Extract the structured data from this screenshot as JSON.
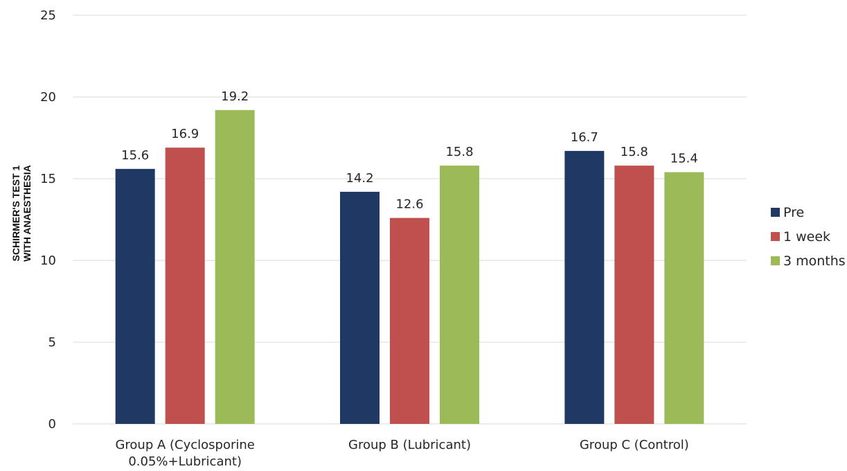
{
  "chart_data": {
    "type": "bar",
    "title": "",
    "xlabel": "",
    "ylabel_lines": [
      "SCHIRMER'S TEST 1",
      "WITH ANAESTHESIA"
    ],
    "categories": [
      [
        "Group A (Cyclosporine",
        "0.05%+Lubricant)"
      ],
      [
        "Group B (Lubricant)"
      ],
      [
        "Group C (Control)"
      ]
    ],
    "series": [
      {
        "name": "Pre",
        "color": "#1f3864",
        "values": [
          15.6,
          14.2,
          16.7
        ],
        "labels": [
          "15.6",
          "14.2",
          "16.7"
        ]
      },
      {
        "name": "1 week",
        "color": "#c0504d",
        "values": [
          16.9,
          12.6,
          15.8
        ],
        "labels": [
          "16.9",
          "12.6",
          "15.8"
        ]
      },
      {
        "name": "3 months",
        "color": "#9bbb59",
        "values": [
          19.2,
          15.8,
          15.4
        ],
        "labels": [
          "19.2",
          "15.8",
          "15.4"
        ]
      }
    ],
    "ylim": [
      0,
      25
    ],
    "yticks": [
      0,
      5,
      10,
      15,
      20,
      25
    ],
    "ytick_labels": [
      "0",
      "5",
      "10",
      "15",
      "20",
      "25"
    ],
    "grid": true,
    "legend_position": "right"
  }
}
